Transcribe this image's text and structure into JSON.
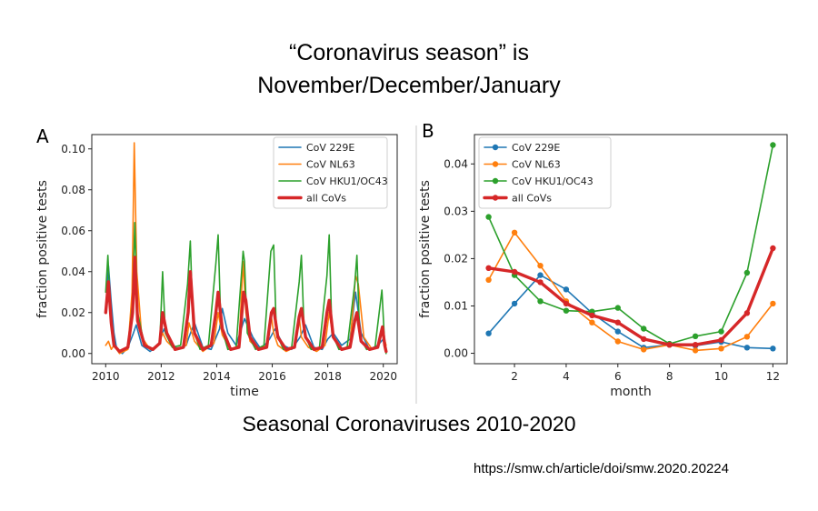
{
  "title": {
    "line1": "“Coronavirus season” is",
    "line2": "November/December/January"
  },
  "caption": "Seasonal Coronaviruses 2010-2020",
  "source": "https://smw.ch/article/doi/smw.2020.20224",
  "colors": {
    "cov229e": "#1f77b4",
    "covnl63": "#ff7f0e",
    "covhku1": "#2ca02c",
    "allcovs": "#d62728"
  },
  "chart_data": [
    {
      "type": "line",
      "panel": "A",
      "xlabel": "time",
      "ylabel": "fraction positive tests",
      "xlim": [
        2009.5,
        2020.5
      ],
      "ylim": [
        -0.005,
        0.107
      ],
      "xticks": [
        2010,
        2012,
        2014,
        2016,
        2018,
        2020
      ],
      "xtick_labels": [
        "2010",
        "2012",
        "2014",
        "2016",
        "2018",
        "2020"
      ],
      "yticks": [
        0.0,
        0.02,
        0.04,
        0.06,
        0.08,
        0.1
      ],
      "ytick_labels": [
        "0.00",
        "0.02",
        "0.04",
        "0.06",
        "0.08",
        "0.10"
      ],
      "legend_position": "top-right",
      "series": [
        {
          "name": "CoV 229E",
          "key": "cov229e",
          "width": 1.6,
          "x": [
            2010.0,
            2010.1,
            2010.2,
            2010.3,
            2010.4,
            2010.6,
            2010.8,
            2011.0,
            2011.1,
            2011.3,
            2011.6,
            2011.9,
            2012.1,
            2012.3,
            2012.6,
            2012.9,
            2013.0,
            2013.2,
            2013.5,
            2013.8,
            2014.1,
            2014.2,
            2014.4,
            2014.7,
            2015.0,
            2015.3,
            2015.6,
            2015.9,
            2016.1,
            2016.4,
            2016.7,
            2017.0,
            2017.2,
            2017.5,
            2017.8,
            2018.0,
            2018.2,
            2018.5,
            2018.8,
            2019.0,
            2019.2,
            2019.5,
            2019.8,
            2020.0,
            2020.1
          ],
          "values": [
            0.02,
            0.043,
            0.025,
            0.01,
            0.002,
            0.0,
            0.003,
            0.01,
            0.014,
            0.004,
            0.001,
            0.004,
            0.012,
            0.006,
            0.002,
            0.004,
            0.008,
            0.015,
            0.003,
            0.002,
            0.012,
            0.022,
            0.01,
            0.004,
            0.017,
            0.008,
            0.002,
            0.007,
            0.012,
            0.004,
            0.002,
            0.008,
            0.014,
            0.003,
            0.002,
            0.007,
            0.01,
            0.004,
            0.007,
            0.03,
            0.01,
            0.002,
            0.004,
            0.007,
            0.002
          ]
        },
        {
          "name": "CoV NL63",
          "key": "covnl63",
          "width": 1.6,
          "x": [
            2010.0,
            2010.1,
            2010.2,
            2010.3,
            2010.5,
            2010.8,
            2010.95,
            2011.03,
            2011.12,
            2011.3,
            2011.6,
            2011.9,
            2012.05,
            2012.2,
            2012.5,
            2012.9,
            2013.0,
            2013.2,
            2013.5,
            2013.9,
            2014.05,
            2014.2,
            2014.5,
            2014.8,
            2014.95,
            2015.05,
            2015.2,
            2015.5,
            2015.8,
            2015.95,
            2016.05,
            2016.2,
            2016.5,
            2016.8,
            2016.97,
            2017.05,
            2017.3,
            2017.6,
            2017.9,
            2018.05,
            2018.2,
            2018.5,
            2018.8,
            2019.0,
            2019.1,
            2019.3,
            2019.6,
            2019.8,
            2019.95,
            2020.1
          ],
          "values": [
            0.004,
            0.006,
            0.002,
            0.004,
            0.0,
            0.002,
            0.03,
            0.103,
            0.04,
            0.008,
            0.002,
            0.004,
            0.01,
            0.006,
            0.002,
            0.004,
            0.015,
            0.006,
            0.001,
            0.005,
            0.02,
            0.009,
            0.002,
            0.004,
            0.045,
            0.02,
            0.006,
            0.002,
            0.004,
            0.02,
            0.01,
            0.004,
            0.001,
            0.003,
            0.018,
            0.008,
            0.003,
            0.001,
            0.004,
            0.02,
            0.008,
            0.002,
            0.004,
            0.038,
            0.034,
            0.008,
            0.002,
            0.003,
            0.012,
            0.004
          ]
        },
        {
          "name": "CoV HKU1/OC43",
          "key": "covhku1",
          "width": 1.6,
          "x": [
            2010.0,
            2010.08,
            2010.17,
            2010.3,
            2010.5,
            2010.8,
            2010.97,
            2011.05,
            2011.15,
            2011.4,
            2011.7,
            2011.95,
            2012.05,
            2012.15,
            2012.4,
            2012.7,
            2012.95,
            2013.05,
            2013.15,
            2013.4,
            2013.7,
            2013.97,
            2014.05,
            2014.15,
            2014.4,
            2014.7,
            2014.95,
            2015.0,
            2015.1,
            2015.4,
            2015.7,
            2015.95,
            2016.05,
            2016.15,
            2016.4,
            2016.7,
            2016.97,
            2017.05,
            2017.15,
            2017.4,
            2017.7,
            2017.97,
            2018.05,
            2018.15,
            2018.4,
            2018.7,
            2018.97,
            2019.05,
            2019.15,
            2019.4,
            2019.7,
            2019.95,
            2020.05,
            2020.1
          ],
          "values": [
            0.03,
            0.048,
            0.02,
            0.004,
            0.001,
            0.003,
            0.025,
            0.064,
            0.02,
            0.004,
            0.002,
            0.005,
            0.04,
            0.01,
            0.003,
            0.004,
            0.034,
            0.055,
            0.012,
            0.002,
            0.004,
            0.044,
            0.058,
            0.014,
            0.002,
            0.003,
            0.05,
            0.045,
            0.01,
            0.002,
            0.004,
            0.05,
            0.053,
            0.01,
            0.002,
            0.003,
            0.035,
            0.048,
            0.01,
            0.002,
            0.003,
            0.038,
            0.058,
            0.01,
            0.002,
            0.003,
            0.034,
            0.048,
            0.008,
            0.002,
            0.003,
            0.031,
            0.004,
            0.0
          ]
        },
        {
          "name": "all CoVs",
          "key": "allcovs",
          "width": 3.4,
          "x": [
            2010.0,
            2010.1,
            2010.2,
            2010.3,
            2010.5,
            2010.8,
            2010.97,
            2011.05,
            2011.15,
            2011.4,
            2011.7,
            2011.95,
            2012.05,
            2012.2,
            2012.5,
            2012.8,
            2012.97,
            2013.05,
            2013.2,
            2013.5,
            2013.8,
            2013.97,
            2014.05,
            2014.2,
            2014.5,
            2014.8,
            2014.97,
            2015.05,
            2015.2,
            2015.5,
            2015.8,
            2015.97,
            2016.05,
            2016.2,
            2016.5,
            2016.8,
            2016.97,
            2017.05,
            2017.2,
            2017.5,
            2017.8,
            2017.97,
            2018.05,
            2018.2,
            2018.5,
            2018.8,
            2018.97,
            2019.05,
            2019.2,
            2019.5,
            2019.8,
            2019.97,
            2020.05,
            2020.1
          ],
          "values": [
            0.02,
            0.035,
            0.015,
            0.004,
            0.001,
            0.003,
            0.02,
            0.047,
            0.016,
            0.004,
            0.002,
            0.005,
            0.02,
            0.01,
            0.002,
            0.003,
            0.02,
            0.04,
            0.01,
            0.002,
            0.004,
            0.02,
            0.03,
            0.012,
            0.002,
            0.003,
            0.03,
            0.026,
            0.008,
            0.002,
            0.003,
            0.02,
            0.022,
            0.008,
            0.002,
            0.003,
            0.018,
            0.022,
            0.008,
            0.002,
            0.003,
            0.02,
            0.026,
            0.008,
            0.002,
            0.003,
            0.016,
            0.02,
            0.006,
            0.002,
            0.003,
            0.013,
            0.004,
            0.001
          ]
        }
      ]
    },
    {
      "type": "line",
      "panel": "B",
      "xlabel": "month",
      "ylabel": "fraction positive tests",
      "xlim": [
        0.45,
        12.55
      ],
      "ylim": [
        -0.0022,
        0.0462
      ],
      "xticks": [
        2,
        4,
        6,
        8,
        10,
        12
      ],
      "xtick_labels": [
        "2",
        "4",
        "6",
        "8",
        "10",
        "12"
      ],
      "yticks": [
        0.0,
        0.01,
        0.02,
        0.03,
        0.04
      ],
      "ytick_labels": [
        "0.00",
        "0.01",
        "0.02",
        "0.03",
        "0.04"
      ],
      "legend_position": "top-left",
      "categories": [
        1,
        2,
        3,
        4,
        5,
        6,
        7,
        8,
        9,
        10,
        11,
        12
      ],
      "series": [
        {
          "name": "CoV 229E",
          "key": "cov229e",
          "width": 1.6,
          "values": [
            0.0042,
            0.0105,
            0.0165,
            0.0135,
            0.0085,
            0.0046,
            0.0012,
            0.0018,
            0.0016,
            0.0024,
            0.0012,
            0.001
          ]
        },
        {
          "name": "CoV NL63",
          "key": "covnl63",
          "width": 1.6,
          "values": [
            0.0155,
            0.0255,
            0.0185,
            0.011,
            0.0065,
            0.0025,
            0.0008,
            0.0018,
            0.0006,
            0.001,
            0.0035,
            0.0105
          ]
        },
        {
          "name": "CoV HKU1/OC43",
          "key": "covhku1",
          "width": 1.6,
          "values": [
            0.0288,
            0.0165,
            0.011,
            0.009,
            0.0088,
            0.0096,
            0.0052,
            0.002,
            0.0036,
            0.0046,
            0.017,
            0.044
          ]
        },
        {
          "name": "all CoVs",
          "key": "allcovs",
          "width": 3.4,
          "values": [
            0.018,
            0.0172,
            0.015,
            0.0105,
            0.008,
            0.0065,
            0.003,
            0.0018,
            0.0018,
            0.0028,
            0.0085,
            0.0222
          ]
        }
      ]
    }
  ]
}
